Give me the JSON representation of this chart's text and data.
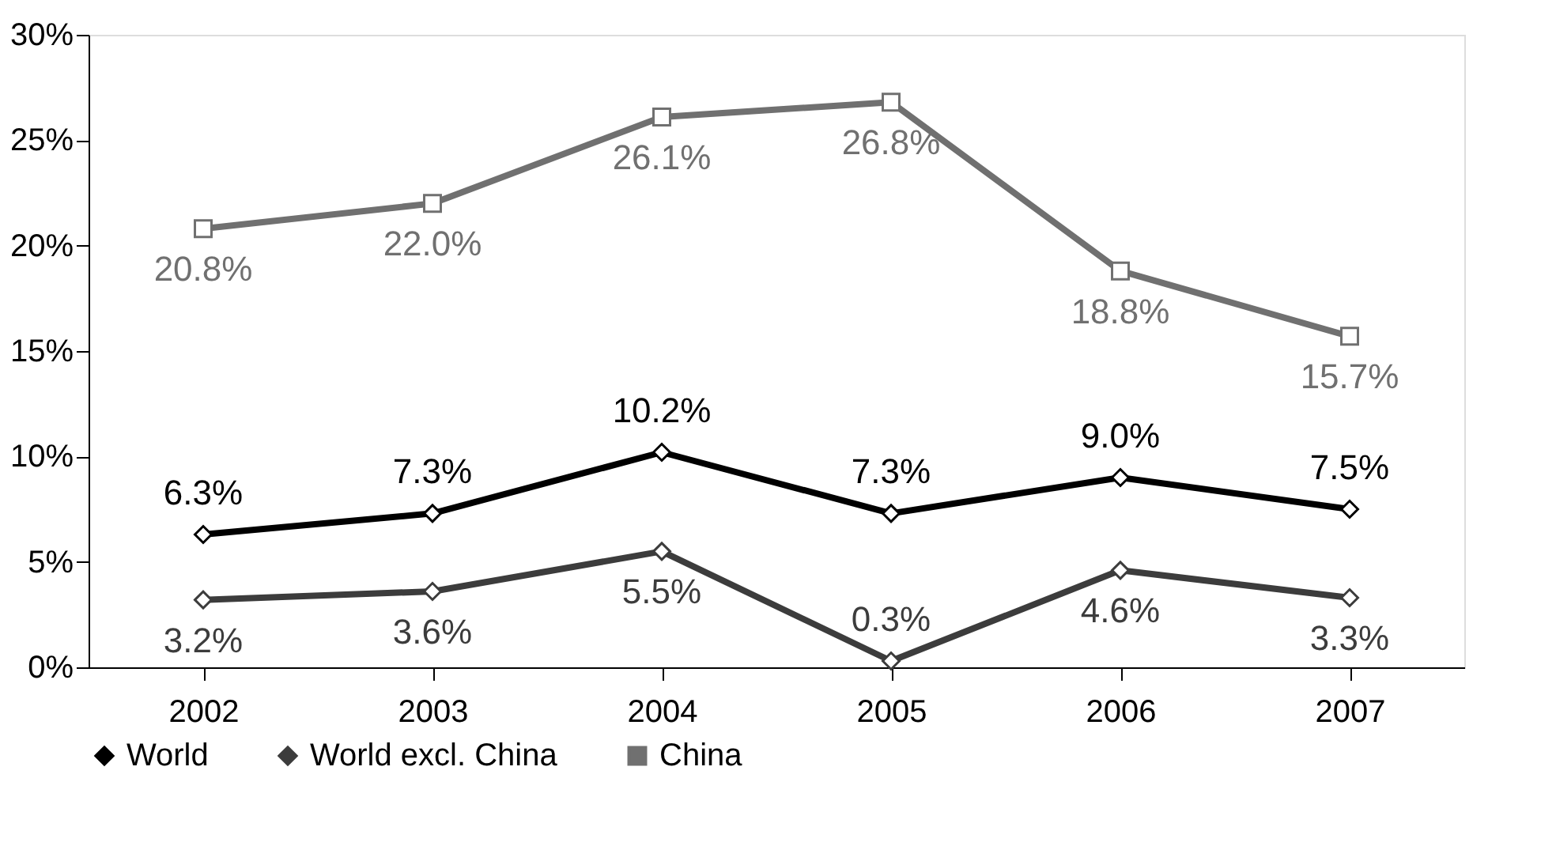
{
  "chart_data": {
    "type": "line",
    "categories": [
      "2002",
      "2003",
      "2004",
      "2005",
      "2006",
      "2007"
    ],
    "series": [
      {
        "name": "World",
        "color": "#000000",
        "marker": "diamond",
        "values": [
          6.3,
          7.3,
          10.2,
          7.3,
          9.0,
          7.5
        ],
        "value_labels": [
          "6.3%",
          "7.3%",
          "10.2%",
          "7.3%",
          "9.0%",
          "7.5%"
        ]
      },
      {
        "name": "World excl. China",
        "color": "#3c3c3c",
        "marker": "diamond",
        "values": [
          3.2,
          3.6,
          5.5,
          0.3,
          4.6,
          3.3
        ],
        "value_labels": [
          "3.2%",
          "3.6%",
          "5.5%",
          "0.3%",
          "4.6%",
          "3.3%"
        ]
      },
      {
        "name": "China",
        "color": "#707070",
        "marker": "square",
        "values": [
          20.8,
          22.0,
          26.1,
          26.8,
          18.8,
          15.7
        ],
        "value_labels": [
          "20.8%",
          "22.0%",
          "26.1%",
          "26.8%",
          "18.8%",
          "15.7%"
        ]
      }
    ],
    "ylim": [
      0,
      30
    ],
    "yticks": [
      {
        "value": 0,
        "label": "0%"
      },
      {
        "value": 5,
        "label": "5%"
      },
      {
        "value": 10,
        "label": "10%"
      },
      {
        "value": 15,
        "label": "15%"
      },
      {
        "value": 20,
        "label": "20%"
      },
      {
        "value": 25,
        "label": "25%"
      },
      {
        "value": 30,
        "label": "30%"
      }
    ],
    "legend": "bottom",
    "grid": false
  }
}
